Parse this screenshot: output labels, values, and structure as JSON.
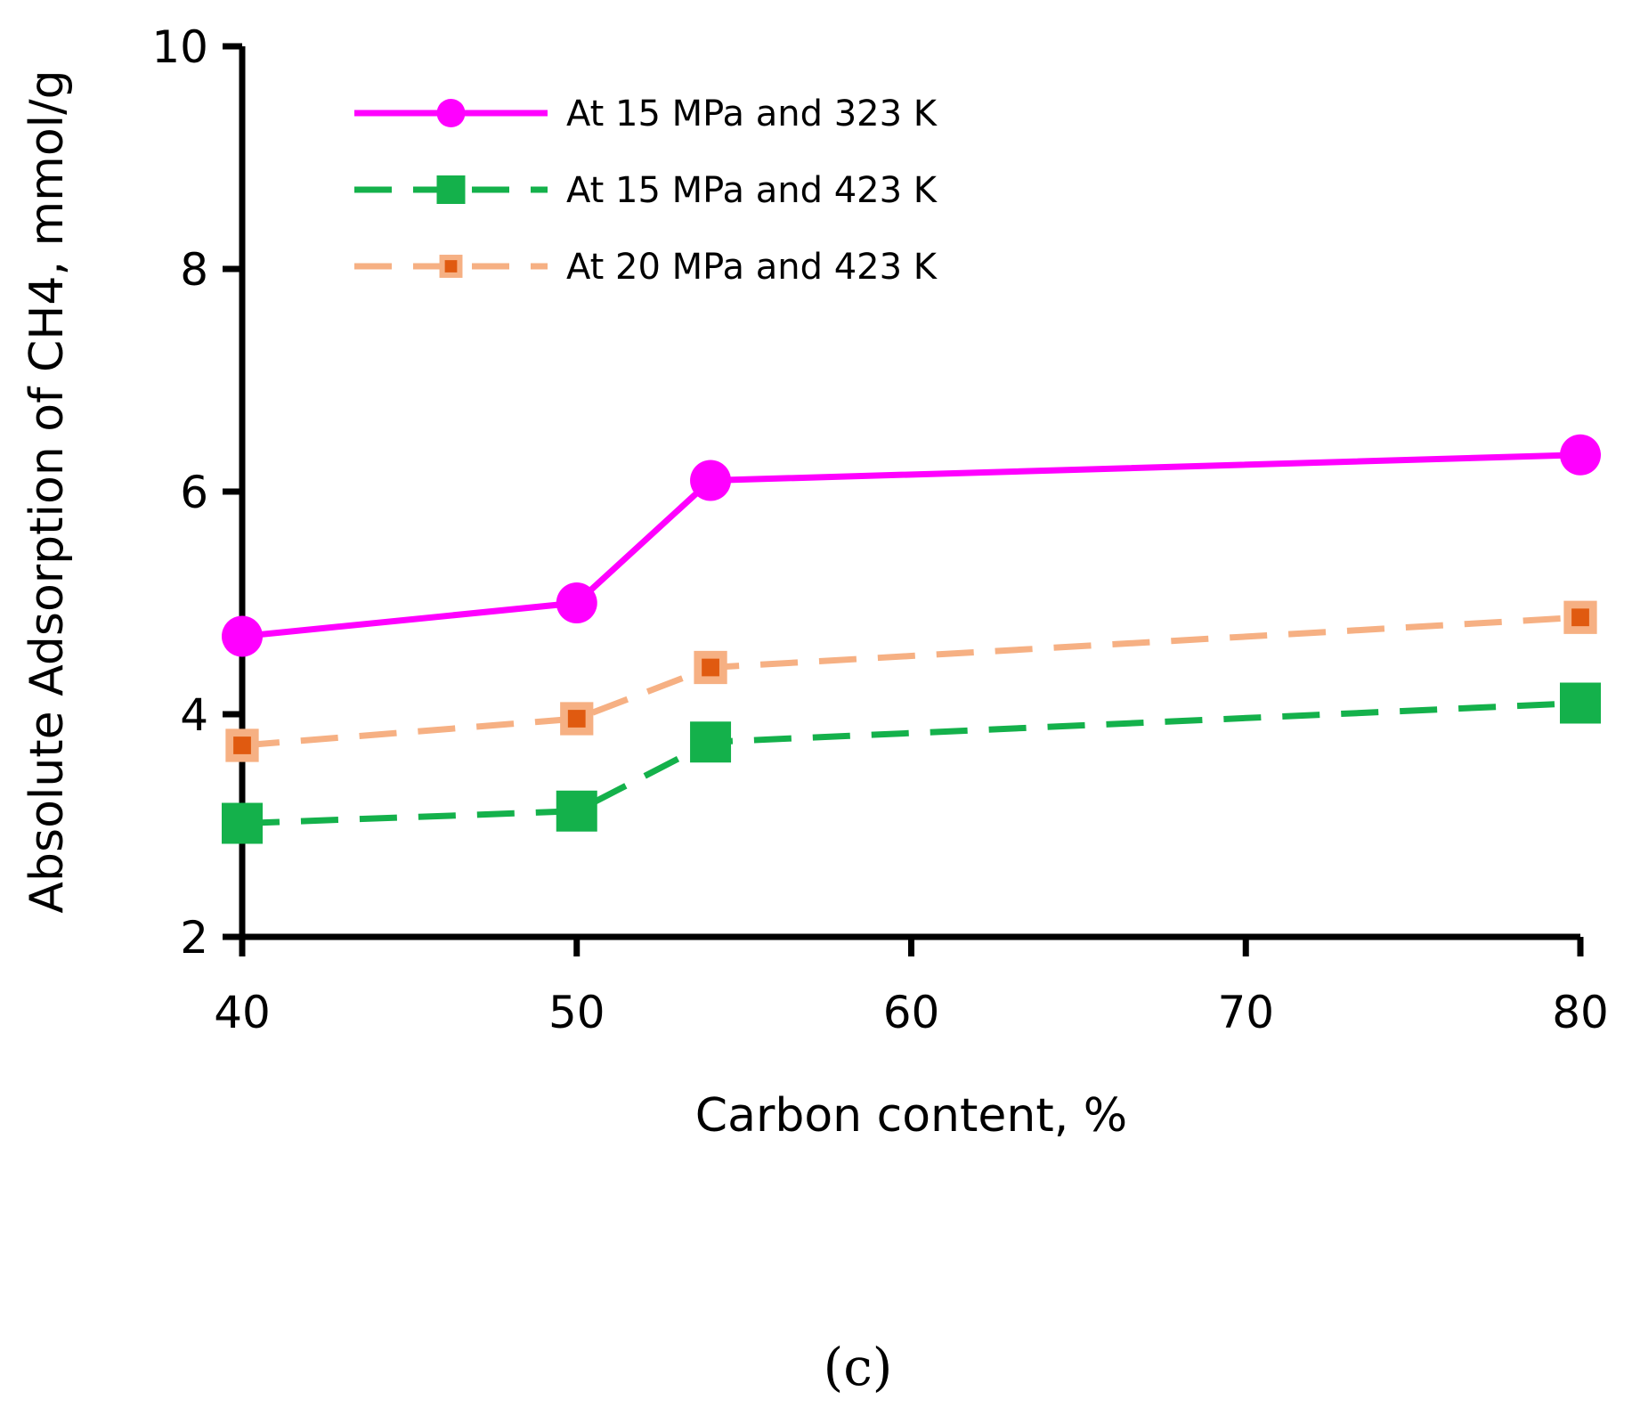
{
  "chart_data": {
    "type": "line",
    "title": "",
    "xlabel": "Carbon content, %",
    "ylabel": "Absolute Adsorption of CH4, mmol/g",
    "xlim": [
      40,
      80
    ],
    "ylim": [
      2,
      10
    ],
    "xticks": [
      40,
      50,
      60,
      70,
      80
    ],
    "yticks": [
      2,
      4,
      6,
      8,
      10
    ],
    "grid": false,
    "legend_position": "top-left",
    "panel_label": "(c)",
    "series": [
      {
        "name": "At 15 MPa and 323 K",
        "x": [
          40,
          50,
          54,
          80
        ],
        "y": [
          4.7,
          5.0,
          6.1,
          6.33
        ],
        "color": "#ff00ff",
        "line_style": "solid",
        "marker": "circle"
      },
      {
        "name": "At 15 MPa and 423 K",
        "x": [
          40,
          50,
          54,
          80
        ],
        "y": [
          3.02,
          3.13,
          3.75,
          4.1
        ],
        "color": "#14b14b",
        "line_style": "dashed",
        "marker": "square"
      },
      {
        "name": "At 20 MPa and 423 K",
        "x": [
          40,
          50,
          54,
          80
        ],
        "y": [
          3.72,
          3.96,
          4.42,
          4.87
        ],
        "color": "#f6b083",
        "fill_color": "#e05a10",
        "line_style": "dashed",
        "marker": "square-outlined"
      }
    ]
  }
}
